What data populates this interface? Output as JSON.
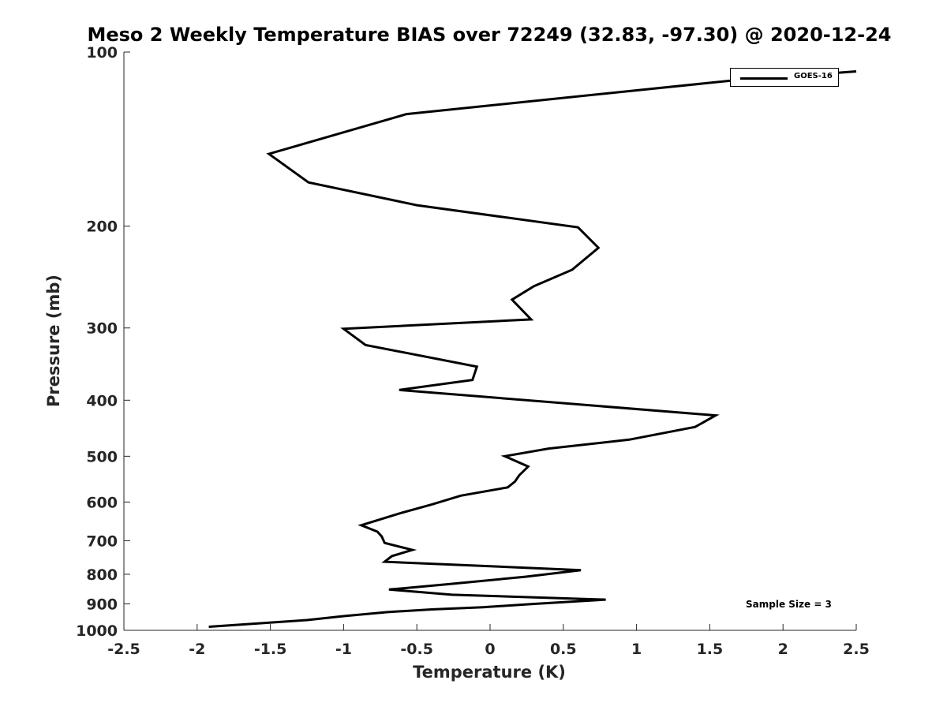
{
  "chart_data": {
    "type": "line",
    "title": "Meso 2 Weekly Temperature BIAS over 72249 (32.83, -97.30) @ 2020-12-24",
    "xlabel": "Temperature (K)",
    "ylabel": "Pressure (mb)",
    "xlim": [
      -2.5,
      2.5
    ],
    "ylim": [
      100,
      1000
    ],
    "y_scale": "log",
    "y_reversed": true,
    "xticks": [
      -2.5,
      -2,
      -1.5,
      -1,
      -0.5,
      0,
      0.5,
      1,
      1.5,
      2,
      2.5
    ],
    "xtick_labels": [
      "-2.5",
      "-2",
      "-1.5",
      "-1",
      "-0.5",
      "0",
      "0.5",
      "1",
      "1.5",
      "2",
      "2.5"
    ],
    "yticks": [
      100,
      200,
      300,
      400,
      500,
      600,
      700,
      800,
      900,
      1000
    ],
    "ytick_labels": [
      "100",
      "200",
      "300",
      "400",
      "500",
      "600",
      "700",
      "800",
      "900",
      "1000"
    ],
    "grid": false,
    "legend_position": "top-right",
    "annotation": "Sample Size = 3",
    "series": [
      {
        "name": "GOES-16",
        "color": "#000000",
        "x": [
          2.5,
          1.65,
          -0.57,
          -1.51,
          -1.24,
          -0.5,
          0.6,
          0.74,
          0.56,
          0.3,
          0.15,
          0.28,
          -1.0,
          -0.85,
          -0.09,
          -0.12,
          -0.62,
          1.54,
          1.4,
          0.95,
          0.4,
          0.1,
          0.26,
          0.2,
          0.17,
          0.12,
          -0.2,
          -0.4,
          -0.62,
          -0.88,
          -0.77,
          -0.74,
          -0.72,
          -0.53,
          -0.67,
          -0.72,
          0.62,
          0.24,
          -0.3,
          -0.69,
          -0.26,
          0.79,
          0.3,
          -0.05,
          -0.4,
          -0.7,
          -1.0,
          -1.25,
          -1.92
        ],
        "y": [
          108,
          112,
          128,
          150,
          168,
          184,
          201,
          218,
          238,
          254,
          268,
          290,
          301,
          321,
          350,
          369,
          384,
          425,
          445,
          468,
          485,
          500,
          521,
          539,
          553,
          566,
          585,
          606,
          628,
          658,
          675,
          688,
          706,
          726,
          744,
          761,
          787,
          808,
          833,
          850,
          868,
          885,
          900,
          912,
          920,
          930,
          945,
          960,
          986
        ]
      }
    ]
  }
}
